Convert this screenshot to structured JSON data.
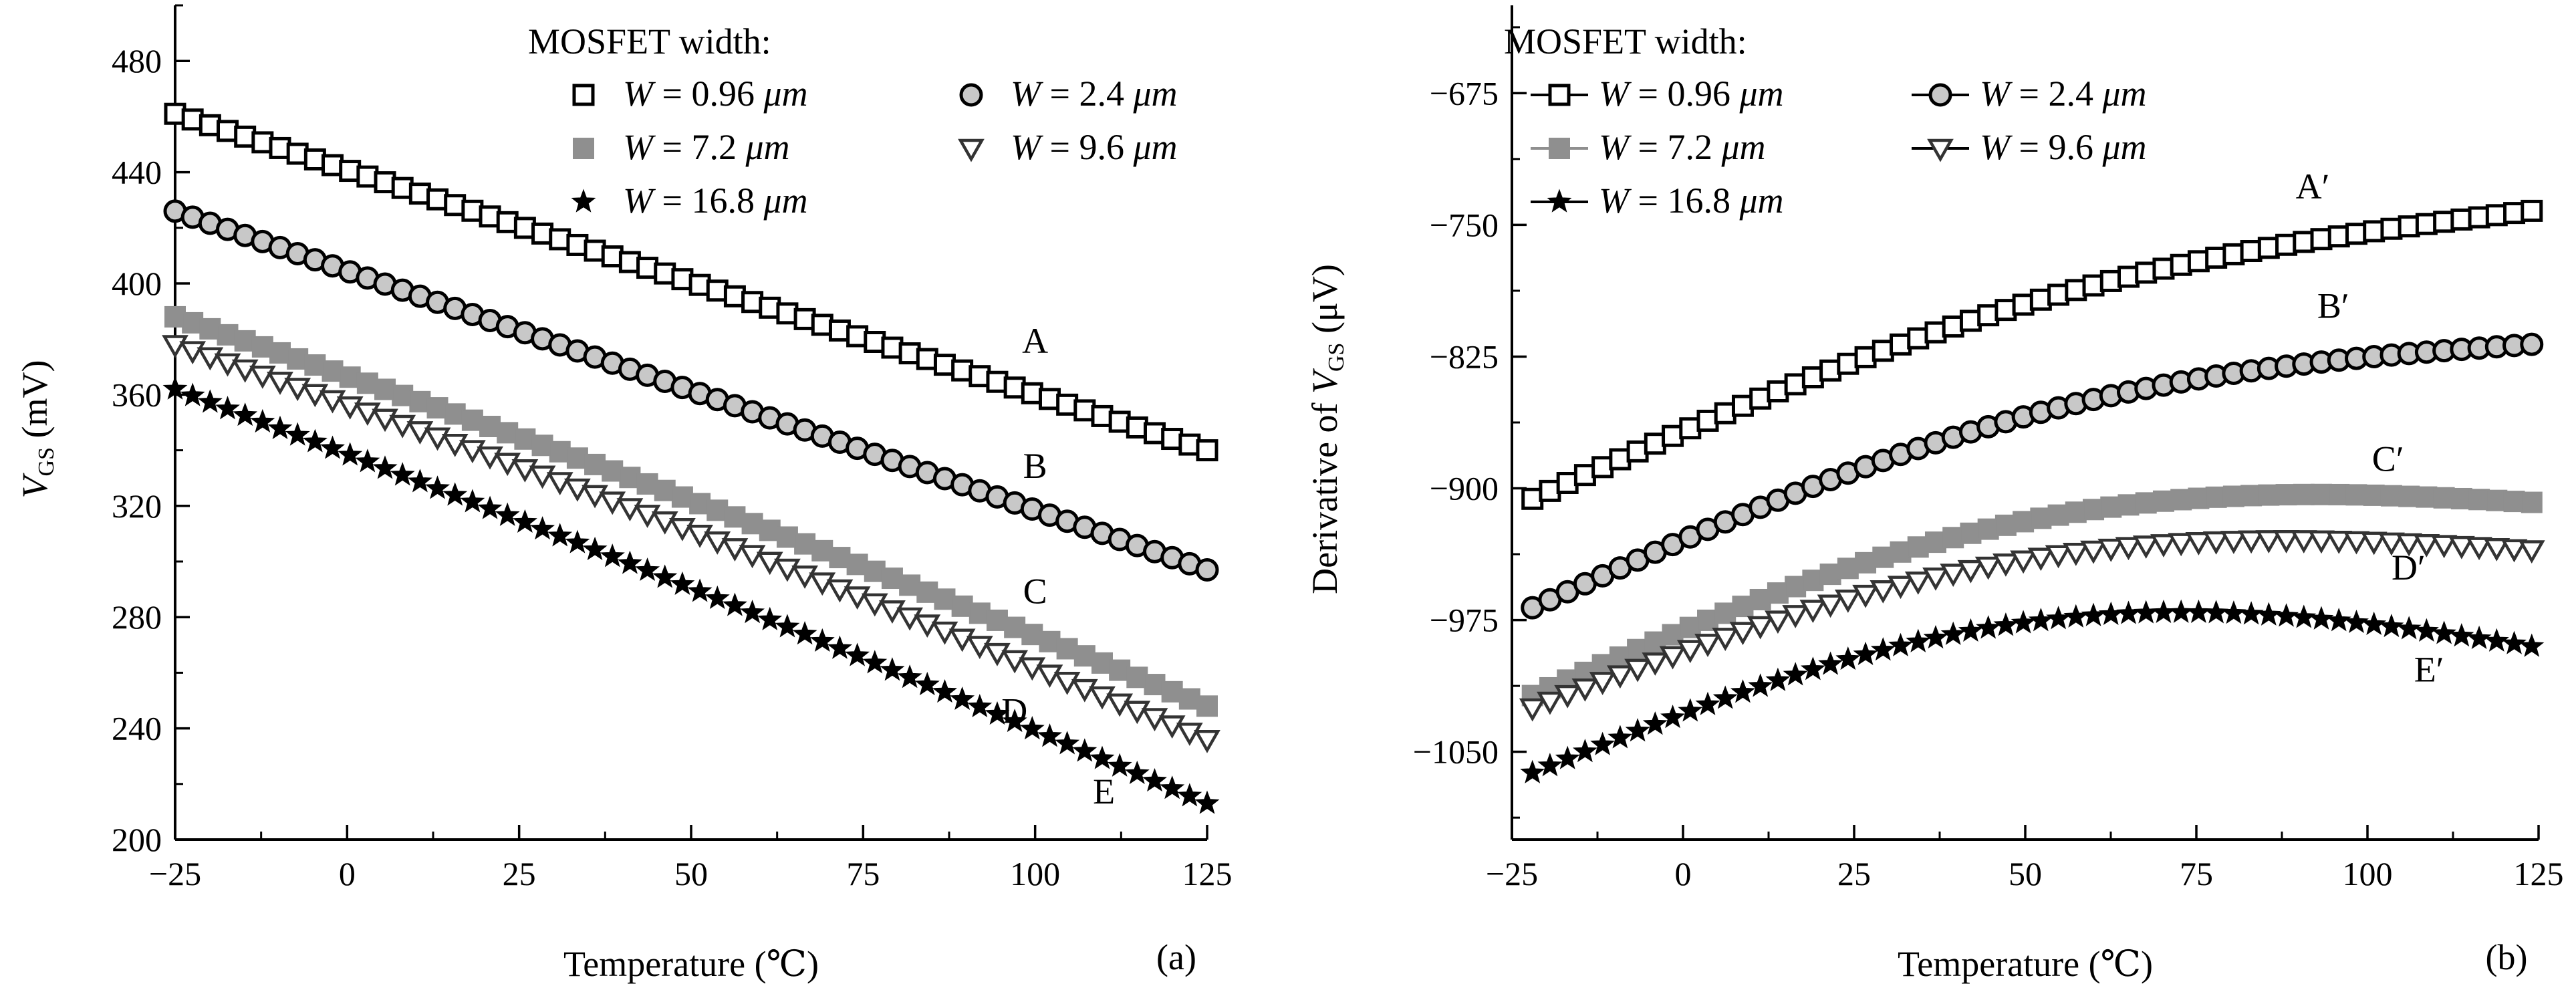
{
  "chart_data": [
    {
      "type": "scatter",
      "panel_label": "(a)",
      "xlabel": "Temperature (℃)",
      "ylabel": "V",
      "ylabel_sub": "GS",
      "ylabel_unit": " (mV)",
      "xlim": [
        -25,
        125
      ],
      "ylim": [
        200,
        500
      ],
      "xticks": [
        -25,
        0,
        25,
        50,
        75,
        100,
        125
      ],
      "yticks": [
        200,
        240,
        280,
        320,
        360,
        400,
        440,
        480
      ],
      "legend": {
        "title": "MOSFET width:",
        "placement": "top-right",
        "entries": [
          {
            "series": 0,
            "prefix": "W",
            "eq": " = ",
            "value": "0.96 ",
            "unit": "μm"
          },
          {
            "series": 1,
            "prefix": "W",
            "eq": " = ",
            "value": "2.4 ",
            "unit": "μm"
          },
          {
            "series": 2,
            "prefix": "W",
            "eq": " = ",
            "value": "7.2 ",
            "unit": "μm"
          },
          {
            "series": 3,
            "prefix": "W",
            "eq": " = ",
            "value": "9.6 ",
            "unit": "μm"
          },
          {
            "series": 4,
            "prefix": "W",
            "eq": " = ",
            "value": "16.8 ",
            "unit": "μm"
          }
        ]
      },
      "series": [
        {
          "curve_label": "A",
          "marker": "open-square",
          "color": "#000000",
          "x_start": -25,
          "x_end": 125,
          "n": 60,
          "y_start": 461,
          "y_end": 340,
          "bow": 0
        },
        {
          "curve_label": "B",
          "marker": "filled-circle-gray",
          "color": "#000000",
          "x_start": -25,
          "x_end": 125,
          "n": 60,
          "y_start": 426,
          "y_end": 297,
          "bow": 0
        },
        {
          "curve_label": "C",
          "marker": "filled-square-gray",
          "color": "#8c8c8c",
          "x_start": -25,
          "x_end": 125,
          "n": 60,
          "y_start": 388,
          "y_end": 248,
          "bow": 4
        },
        {
          "curve_label": "D",
          "marker": "open-triangle-down",
          "color": "#555555",
          "x_start": -25,
          "x_end": 125,
          "n": 60,
          "y_start": 378,
          "y_end": 236,
          "bow": 4
        },
        {
          "curve_label": "E",
          "marker": "star",
          "color": "#000000",
          "x_start": -25,
          "x_end": 125,
          "n": 60,
          "y_start": 362,
          "y_end": 213,
          "bow": 3
        }
      ],
      "curve_labels": [
        {
          "text": "A",
          "x": 100,
          "y": 375
        },
        {
          "text": "B",
          "x": 100,
          "y": 330
        },
        {
          "text": "C",
          "x": 100,
          "y": 285
        },
        {
          "text": "D",
          "x": 97,
          "y": 242
        },
        {
          "text": "E",
          "x": 110,
          "y": 213
        }
      ]
    },
    {
      "type": "scatter",
      "panel_label": "(b)",
      "xlabel": "Temperature (℃)",
      "ylabel": "Derivative of V",
      "ylabel_sub": "GS",
      "ylabel_unit": " (μV)",
      "xlim": [
        -25,
        125
      ],
      "ylim": [
        -1100,
        -625
      ],
      "xticks": [
        -25,
        0,
        25,
        50,
        75,
        100,
        125
      ],
      "yticks": [
        -1050,
        -975,
        -900,
        -825,
        -750,
        -675
      ],
      "legend": {
        "title": "MOSFET width:",
        "placement": "top-left",
        "entries": [
          {
            "series": 0,
            "prefix": "W",
            "eq": " = ",
            "value": "0.96 ",
            "unit": "μm"
          },
          {
            "series": 1,
            "prefix": "W",
            "eq": " = ",
            "value": "2.4 ",
            "unit": "μm"
          },
          {
            "series": 2,
            "prefix": "W",
            "eq": " = ",
            "value": "7.2 ",
            "unit": "μm"
          },
          {
            "series": 3,
            "prefix": "W",
            "eq": " = ",
            "value": "9.6 ",
            "unit": "μm"
          },
          {
            "series": 4,
            "prefix": "W",
            "eq": " = ",
            "value": "16.8 ",
            "unit": "μm"
          }
        ]
      },
      "series": [
        {
          "curve_label": "A′",
          "marker": "open-square",
          "color": "#000000",
          "x_start": -22,
          "x_end": 124,
          "n": 58,
          "y_start": -906,
          "y_end": -742,
          "bow": 30
        },
        {
          "curve_label": "B′",
          "marker": "filled-circle-gray",
          "color": "#000000",
          "x_start": -22,
          "x_end": 124,
          "n": 58,
          "y_start": -968,
          "y_end": -818,
          "bow": 35
        },
        {
          "curve_label": "C′",
          "marker": "filled-square-gray",
          "color": "#8c8c8c",
          "x_start": -22,
          "x_end": 124,
          "n": 58,
          "y_start": -1018,
          "y_end": -908,
          "bow": 45
        },
        {
          "curve_label": "D′",
          "marker": "open-triangle-down",
          "color": "#000000",
          "x_start": -22,
          "x_end": 124,
          "n": 58,
          "y_start": -1025,
          "y_end": -935,
          "bow": 40
        },
        {
          "curve_label": "E′",
          "marker": "star",
          "color": "#000000",
          "x_start": -22,
          "x_end": 124,
          "n": 58,
          "y_start": -1062,
          "y_end": -990,
          "bow": 50
        }
      ],
      "curve_labels": [
        {
          "text": "A′",
          "x": 92,
          "y": -735
        },
        {
          "text": "B′",
          "x": 95,
          "y": -803
        },
        {
          "text": "C′",
          "x": 103,
          "y": -890
        },
        {
          "text": "D′",
          "x": 106,
          "y": -952
        },
        {
          "text": "E′",
          "x": 109,
          "y": -1010
        }
      ]
    }
  ]
}
